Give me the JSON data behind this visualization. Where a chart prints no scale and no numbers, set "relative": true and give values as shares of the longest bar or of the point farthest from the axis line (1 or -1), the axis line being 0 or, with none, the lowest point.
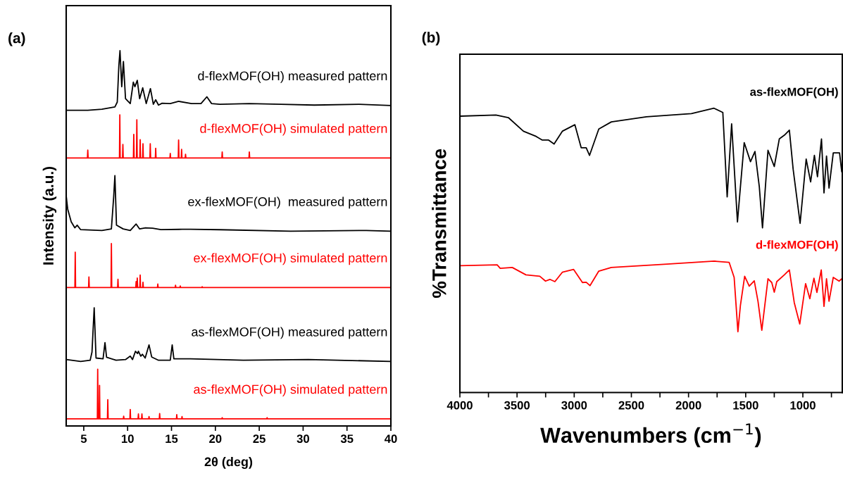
{
  "chart_data": [
    {
      "type": "line",
      "title": "(a)",
      "xlabel": "2θ (deg)",
      "ylabel": "Intensity (a.u.)",
      "relative": true,
      "tick_labels": "x",
      "xlim": [
        3,
        40
      ],
      "xticks": [
        5,
        10,
        15,
        20,
        25,
        30,
        35,
        40
      ],
      "series": [
        {
          "name": "d-flexMOF(OH) measured pattern",
          "color": "#000000",
          "x": [
            3.0,
            5.46,
            7.07,
            8.55,
            8.82,
            9.0,
            9.13,
            9.33,
            9.52,
            9.76,
            10.3,
            10.65,
            10.83,
            11.1,
            11.37,
            11.72,
            12.12,
            12.6,
            12.93,
            13.2,
            13.52,
            13.93,
            14.86,
            15.81,
            17.28,
            18.36,
            19.03,
            19.57,
            20.51,
            23.87,
            27.5,
            31.27,
            36.37,
            40.0
          ],
          "values": [
            0.841,
            0.841,
            0.844,
            0.85,
            0.863,
            0.96,
            1.0,
            0.904,
            0.971,
            0.872,
            0.859,
            0.916,
            0.904,
            0.921,
            0.872,
            0.901,
            0.859,
            0.899,
            0.857,
            0.869,
            0.855,
            0.86,
            0.859,
            0.865,
            0.859,
            0.859,
            0.877,
            0.859,
            0.857,
            0.859,
            0.857,
            0.855,
            0.857,
            0.854
          ]
        },
        {
          "name": "d-flexMOF(OH) simulated pattern",
          "color": "#ff0000",
          "x": [
            3,
            5.42,
            5.46,
            5.5,
            9.07,
            9.11,
            9.15,
            9.42,
            9.46,
            9.5,
            10.66,
            10.7,
            10.74,
            11.01,
            11.05,
            11.09,
            11.39,
            11.43,
            11.47,
            11.71,
            11.75,
            11.79,
            12.54,
            12.58,
            12.62,
            13.16,
            13.2,
            13.24,
            14.82,
            14.86,
            14.9,
            15.77,
            15.81,
            15.85,
            16.11,
            16.15,
            16.19,
            16.56,
            16.6,
            16.64,
            20.74,
            20.78,
            20.82,
            23.83,
            23.87,
            23.91,
            40
          ],
          "values": [
            0.714,
            0.714,
            0.735,
            0.714,
            0.714,
            0.829,
            0.714,
            0.714,
            0.75,
            0.714,
            0.714,
            0.777,
            0.714,
            0.714,
            0.816,
            0.714,
            0.714,
            0.763,
            0.714,
            0.714,
            0.752,
            0.714,
            0.714,
            0.752,
            0.714,
            0.714,
            0.74,
            0.714,
            0.714,
            0.726,
            0.714,
            0.714,
            0.762,
            0.714,
            0.714,
            0.737,
            0.714,
            0.714,
            0.724,
            0.714,
            0.714,
            0.73,
            0.714,
            0.714,
            0.73,
            0.714,
            0.714
          ]
        },
        {
          "name": "ex-flexMOF(OH)  measured pattern",
          "color": "#000000",
          "x": [
            3.0,
            3.17,
            3.57,
            3.98,
            4.25,
            4.65,
            7.07,
            8.15,
            8.41,
            8.55,
            8.73,
            9.49,
            10.3,
            10.97,
            11.37,
            12.04,
            12.85,
            13.79,
            16.21,
            17.15,
            20.51,
            28.57,
            37.2,
            40.0
          ],
          "values": [
            0.613,
            0.578,
            0.544,
            0.528,
            0.535,
            0.523,
            0.521,
            0.525,
            0.61,
            0.667,
            0.535,
            0.525,
            0.521,
            0.538,
            0.525,
            0.528,
            0.527,
            0.523,
            0.524,
            0.524,
            0.523,
            0.519,
            0.521,
            0.519
          ]
        },
        {
          "name": "ex-flexMOF(OH) simulated pattern",
          "color": "#ff0000",
          "x": [
            3,
            3.99,
            4.03,
            4.07,
            5.55,
            5.59,
            5.63,
            8.11,
            8.15,
            8.19,
            8.86,
            8.9,
            8.94,
            10.93,
            10.97,
            11.01,
            11.06,
            11.1,
            11.14,
            11.39,
            11.43,
            11.47,
            11.71,
            11.75,
            11.79,
            13.4,
            13.44,
            13.48,
            15.42,
            15.46,
            15.5,
            15.96,
            16.0,
            16.04,
            18.46,
            18.5,
            18.54,
            40
          ],
          "values": [
            0.369,
            0.369,
            0.463,
            0.369,
            0.369,
            0.397,
            0.369,
            0.369,
            0.486,
            0.369,
            0.369,
            0.391,
            0.369,
            0.369,
            0.385,
            0.369,
            0.369,
            0.394,
            0.369,
            0.369,
            0.402,
            0.369,
            0.369,
            0.383,
            0.369,
            0.369,
            0.378,
            0.369,
            0.369,
            0.375,
            0.369,
            0.369,
            0.373,
            0.369,
            0.369,
            0.371,
            0.369,
            0.369
          ]
        },
        {
          "name": "as-flexMOF(OH) measured pattern",
          "color": "#000000",
          "x": [
            3.0,
            4.65,
            5.73,
            5.94,
            6.19,
            6.4,
            7.2,
            7.42,
            7.6,
            8.68,
            9.76,
            10.3,
            10.56,
            10.89,
            11.13,
            11.23,
            11.5,
            11.69,
            12.0,
            12.44,
            12.74,
            12.98,
            13.52,
            14.86,
            15.08,
            15.27,
            17.15,
            23.2,
            30.6,
            40.0
          ],
          "values": [
            0.177,
            0.172,
            0.175,
            0.197,
            0.315,
            0.181,
            0.179,
            0.222,
            0.183,
            0.175,
            0.177,
            0.186,
            0.177,
            0.199,
            0.193,
            0.199,
            0.186,
            0.191,
            0.181,
            0.216,
            0.184,
            0.181,
            0.175,
            0.175,
            0.216,
            0.179,
            0.179,
            0.175,
            0.177,
            0.172
          ]
        },
        {
          "name": "as-flexMOF(OH) simulated pattern",
          "color": "#ff0000",
          "x": [
            3,
            6.55,
            6.59,
            6.63,
            6.76,
            6.8,
            6.84,
            7.7,
            7.74,
            7.78,
            9.51,
            9.55,
            9.59,
            10.26,
            10.3,
            10.34,
            11.19,
            11.23,
            11.27,
            11.59,
            11.63,
            11.67,
            12.4,
            12.44,
            12.48,
            13.61,
            13.65,
            13.69,
            15.56,
            15.6,
            15.64,
            16.16,
            16.2,
            16.24,
            20.74,
            20.78,
            20.82,
            25.86,
            25.9,
            25.94,
            40
          ],
          "values": [
            0.019,
            0.019,
            0.151,
            0.019,
            0.019,
            0.108,
            0.019,
            0.019,
            0.07,
            0.019,
            0.019,
            0.026,
            0.019,
            0.019,
            0.044,
            0.019,
            0.019,
            0.032,
            0.019,
            0.019,
            0.032,
            0.019,
            0.019,
            0.025,
            0.019,
            0.019,
            0.033,
            0.019,
            0.019,
            0.03,
            0.019,
            0.019,
            0.025,
            0.019,
            0.019,
            0.022,
            0.019,
            0.019,
            0.022,
            0.019,
            0.019
          ]
        }
      ]
    },
    {
      "type": "line",
      "title": "(b)",
      "xlabel": "Wavenumbers (cm$^{−1}$)",
      "ylabel": "%Transmittance",
      "relative": true,
      "tick_labels": "x",
      "xlim": [
        4000,
        655
      ],
      "xticks": [
        4000,
        {
          "value": 3750,
          "label": null
        },
        3500,
        {
          "value": 3250,
          "label": null
        },
        3000,
        {
          "value": 2750,
          "label": null
        },
        2500,
        {
          "value": 2250,
          "label": null
        },
        2000,
        {
          "value": 1750,
          "label": null
        },
        1500,
        {
          "value": 1250,
          "label": null
        },
        1000,
        {
          "value": 750,
          "label": null
        }
      ],
      "series": [
        {
          "name": "as-flexMOF(OH)",
          "color": "#000000",
          "x": [
            4000,
            3685,
            3576,
            3444,
            3334,
            3279,
            3224,
            3176,
            3104,
            2994,
            2939,
            2895,
            2866,
            2785,
            2675,
            2368,
            1975,
            1777,
            1700,
            1662,
            1623,
            1572,
            1546,
            1513,
            1458,
            1419,
            1381,
            1353,
            1305,
            1250,
            1206,
            1162,
            1118,
            1085,
            1024,
            971,
            932,
            899,
            872,
            837,
            815,
            793,
            771,
            734,
            679,
            660
          ],
          "values": [
            0.972,
            0.976,
            0.967,
            0.919,
            0.901,
            0.888,
            0.888,
            0.874,
            0.919,
            0.942,
            0.861,
            0.861,
            0.834,
            0.927,
            0.952,
            0.97,
            0.981,
            1.0,
            0.985,
            0.688,
            0.945,
            0.6,
            0.724,
            0.879,
            0.812,
            0.848,
            0.724,
            0.579,
            0.852,
            0.795,
            0.892,
            0.905,
            0.923,
            0.786,
            0.595,
            0.821,
            0.741,
            0.834,
            0.759,
            0.892,
            0.702,
            0.832,
            0.719,
            0.843,
            0.843,
            0.777
          ]
        },
        {
          "name": "d-flexMOF(OH)",
          "color": "#ff0000",
          "x": [
            4000,
            3674,
            3647,
            3542,
            3422,
            3301,
            3251,
            3213,
            3169,
            3104,
            3005,
            2928,
            2895,
            2862,
            2785,
            2675,
            2214,
            1777,
            1645,
            1601,
            1568,
            1546,
            1509,
            1469,
            1425,
            1392,
            1359,
            1305,
            1272,
            1250,
            1228,
            1162,
            1118,
            1075,
            1027,
            976,
            939,
            903,
            877,
            839,
            815,
            793,
            771,
            734,
            683,
            660
          ],
          "values": [
            0.446,
            0.449,
            0.437,
            0.44,
            0.414,
            0.409,
            0.392,
            0.398,
            0.39,
            0.423,
            0.433,
            0.387,
            0.388,
            0.376,
            0.427,
            0.44,
            0.451,
            0.462,
            0.458,
            0.405,
            0.214,
            0.307,
            0.409,
            0.374,
            0.393,
            0.32,
            0.219,
            0.4,
            0.387,
            0.353,
            0.39,
            0.414,
            0.431,
            0.316,
            0.241,
            0.383,
            0.33,
            0.402,
            0.352,
            0.431,
            0.303,
            0.4,
            0.321,
            0.405,
            0.392,
            0.4
          ]
        }
      ]
    }
  ]
}
